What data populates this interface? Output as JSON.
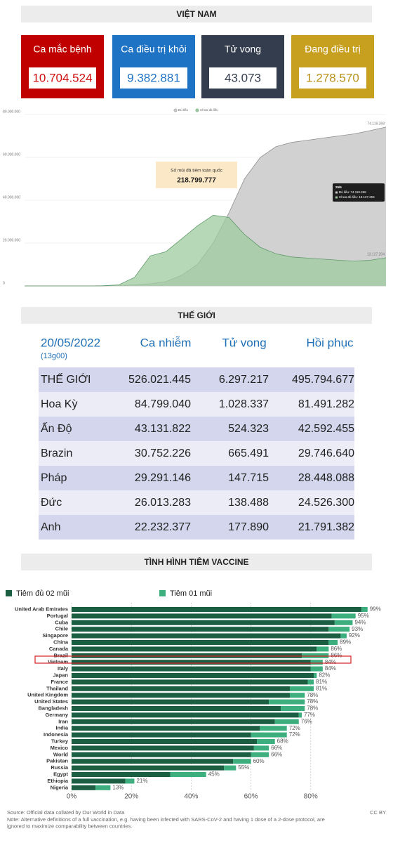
{
  "vietnam": {
    "title": "VIỆT NAM",
    "stats": [
      {
        "label": "Ca mắc bệnh",
        "value": "10.704.524"
      },
      {
        "label": "Ca điều trị khỏi",
        "value": "9.382.881"
      },
      {
        "label": "Tử vong",
        "value": "43.073"
      },
      {
        "label": "Đang điều trị",
        "value": "1.278.570"
      }
    ]
  },
  "chart_data": [
    {
      "type": "area",
      "categories": [
        null,
        null,
        null,
        null,
        null,
        null,
        null,
        null,
        null,
        null,
        null,
        null,
        null,
        null,
        null,
        null,
        null,
        null,
        null,
        null,
        null,
        null,
        null,
        null
      ],
      "series": [
        {
          "name": "Đủ liều",
          "color": "#c9c9c9",
          "stroke": "#8f8f8f",
          "values": [
            0,
            0,
            0,
            0,
            0,
            0,
            200000,
            500000,
            1000000,
            2000000,
            5000000,
            10000000,
            20000000,
            34000000,
            50000000,
            60000000,
            65000000,
            67000000,
            68000000,
            69000000,
            70000000,
            71000000,
            72500000,
            74119268
          ],
          "value_labels": [
            null,
            null,
            null,
            null,
            null,
            null,
            null,
            null,
            null,
            null,
            null,
            null,
            null,
            null,
            null,
            null,
            null,
            null,
            null,
            null,
            null,
            null,
            null,
            "74.119.268"
          ]
        },
        {
          "name": "Chưa đủ liều",
          "color": "#9fcb9f",
          "stroke": "#5f9a6a",
          "values": [
            0,
            0,
            0,
            0,
            0,
            100000,
            500000,
            4000000,
            14000000,
            16000000,
            22000000,
            28000000,
            33000000,
            32000000,
            24000000,
            18000000,
            15000000,
            13500000,
            13000000,
            12500000,
            12000000,
            11500000,
            12000000,
            13127204
          ],
          "value_labels": [
            null,
            null,
            null,
            null,
            null,
            null,
            null,
            null,
            null,
            null,
            null,
            null,
            null,
            null,
            null,
            null,
            null,
            null,
            null,
            null,
            null,
            null,
            null,
            "13.127.204"
          ]
        }
      ],
      "ylim": [
        0,
        80000000
      ],
      "yticks": [
        0,
        {
          "value": 20000000,
          "label": "20.000.000"
        },
        {
          "value": 40000000,
          "label": "40.000.000"
        },
        {
          "value": 60000000,
          "label": "60.000.000"
        },
        {
          "value": 80000000,
          "label": "80.000.000"
        }
      ],
      "grid": true,
      "annotation": {
        "title": "Số mũi đã tiêm toàn quốc",
        "value": "218.799.777"
      },
      "tooltip": {
        "date": "29/5",
        "lines": [
          "Đủ liều: 74.119.268",
          "Chưa đủ liều: 13.127.204"
        ]
      }
    },
    {
      "type": "stacked-barh",
      "title": "TÌNH HÌNH TIÊM VACCINE",
      "categories": [
        "United Arab Emirates",
        "Portugal",
        "Cuba",
        "Chile",
        "Singapore",
        "China",
        "Canada",
        "Brazil",
        "Vietnam",
        "Italy",
        "Japan",
        "France",
        "Thailand",
        "United Kingdom",
        "United States",
        "Bangladesh",
        "Germany",
        "Iran",
        "India",
        "Indonesia",
        "Turkey",
        "Mexico",
        "World",
        "Pakistan",
        "Russia",
        "Egypt",
        "Ethiopia",
        "Nigeria"
      ],
      "series": [
        {
          "name": "Tiêm đủ 02 mũi",
          "color": "#1b5e42",
          "values": [
            97,
            87,
            88,
            86,
            90,
            86,
            82,
            77,
            80,
            80,
            81,
            79,
            73,
            73,
            66,
            70,
            76,
            68,
            63,
            60,
            62,
            61,
            60,
            54,
            51,
            33,
            18,
            8
          ]
        },
        {
          "name": "Tiêm 01 mũi",
          "color": "#3daf7e",
          "values": [
            2,
            8,
            6,
            7,
            2,
            3,
            4,
            9,
            4,
            4,
            1,
            2,
            8,
            5,
            12,
            8,
            1,
            8,
            9,
            12,
            6,
            5,
            6,
            6,
            4,
            12,
            3,
            5
          ]
        }
      ],
      "value_labels": [
        "99%",
        "95%",
        "94%",
        "93%",
        "92%",
        "89%",
        "86%",
        "86%",
        "84%",
        "84%",
        "82%",
        "81%",
        "81%",
        "78%",
        "78%",
        "78%",
        "77%",
        "76%",
        "72%",
        "72%",
        "68%",
        "66%",
        "66%",
        "60%",
        "55%",
        "45%",
        "21%",
        "13%"
      ],
      "xlim": [
        0,
        100
      ],
      "xticks": [
        {
          "value": 0,
          "label": "0%"
        },
        {
          "value": 20,
          "label": "20%"
        },
        {
          "value": 40,
          "label": "40%"
        },
        {
          "value": 60,
          "label": "60%"
        },
        {
          "value": 80,
          "label": "80%"
        }
      ],
      "grid": true,
      "source": "Source: Official data collated by Our World in Data",
      "license": "CC BY",
      "note": [
        "Note: Alternative definitions of a full vaccination, e.g. having been infected with SARS-CoV-2 and having 1 dose of a 2-dose protocol, are",
        "ignored to maximize comparability between countries."
      ]
    }
  ],
  "world": {
    "title": "THẾ GIỚI",
    "date": "20/05/2022",
    "time": "(13g00)",
    "columns": [
      "Ca nhiễm",
      "Tử vong",
      "Hồi phục"
    ],
    "rows": [
      [
        "THẾ GIỚI",
        "526.021.445",
        "6.297.217",
        "495.794.677"
      ],
      [
        "Hoa Kỳ",
        "84.799.040",
        "1.028.337",
        "81.491.282"
      ],
      [
        "Ấn Độ",
        "43.131.822",
        "524.323",
        "42.592.455"
      ],
      [
        "Brazin",
        "30.752.226",
        "665.491",
        "29.746.640"
      ],
      [
        "Pháp",
        "29.291.146",
        "147.715",
        "28.448.088"
      ],
      [
        "Đức",
        "26.013.283",
        "138.488",
        "24.526.300"
      ],
      [
        "Anh",
        "22.232.377",
        "177.890",
        "21.791.382"
      ]
    ]
  }
}
